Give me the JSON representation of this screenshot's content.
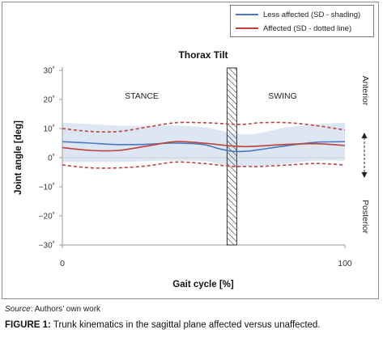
{
  "chart_data": {
    "type": "line",
    "title": "Thorax Tilt",
    "xlabel": "Gait cycle [%]",
    "ylabel": "Joint angle [deg]",
    "xlim": [
      0,
      100
    ],
    "ylim": [
      -30,
      30
    ],
    "x_ticks": [
      "0",
      "100"
    ],
    "y_ticks": [
      "30˚",
      "20˚",
      "10˚",
      "0˚",
      "−10˚",
      "−20˚",
      "−30˚"
    ],
    "grid": false,
    "legend_placement": "top-right",
    "phase_labels": {
      "stance": "STANCE",
      "swing": "SWING"
    },
    "right_labels": {
      "top": "Anterior",
      "bottom": "Posterior"
    },
    "toe_off_x": 60,
    "series": [
      {
        "name": "Less affected (SD - shading)",
        "color": "#4a78c0",
        "x": [
          0,
          10,
          20,
          30,
          40,
          50,
          55,
          60,
          65,
          70,
          80,
          90,
          100
        ],
        "mean": [
          5.5,
          5.0,
          4.5,
          4.6,
          5.0,
          4.5,
          3.2,
          2.2,
          2.2,
          2.8,
          4.2,
          5.3,
          5.5
        ],
        "sd_upper": [
          12.0,
          11.5,
          11.0,
          11.0,
          11.0,
          10.5,
          9.5,
          8.5,
          8.0,
          8.5,
          10.5,
          11.5,
          12.0
        ],
        "sd_lower": [
          -1.5,
          -1.5,
          -1.5,
          -1.2,
          -1.0,
          -1.2,
          -2.0,
          -2.8,
          -3.0,
          -2.8,
          -2.0,
          -1.0,
          -1.0
        ]
      },
      {
        "name": "Affected (SD - dotted line)",
        "color": "#c0403a",
        "x": [
          0,
          10,
          20,
          30,
          40,
          50,
          55,
          60,
          65,
          70,
          80,
          90,
          100
        ],
        "mean": [
          3.5,
          2.5,
          2.5,
          4.0,
          5.5,
          5.0,
          4.5,
          4.0,
          3.8,
          4.0,
          4.6,
          4.8,
          4.2
        ],
        "sd_upper": [
          10.0,
          9.0,
          9.0,
          10.5,
          12.0,
          12.0,
          11.8,
          11.5,
          11.5,
          12.0,
          12.0,
          11.0,
          9.5
        ],
        "sd_lower": [
          -2.5,
          -3.5,
          -3.5,
          -2.8,
          -1.5,
          -2.0,
          -2.5,
          -3.0,
          -3.0,
          -3.0,
          -2.5,
          -2.0,
          -2.5
        ]
      }
    ]
  },
  "source": {
    "prefix": "Source",
    "text": ": Authors’ own work"
  },
  "caption": {
    "label": "FIGURE 1:",
    "text": " Trunk kinematics in the sagittal plane affected versus unaffected."
  }
}
